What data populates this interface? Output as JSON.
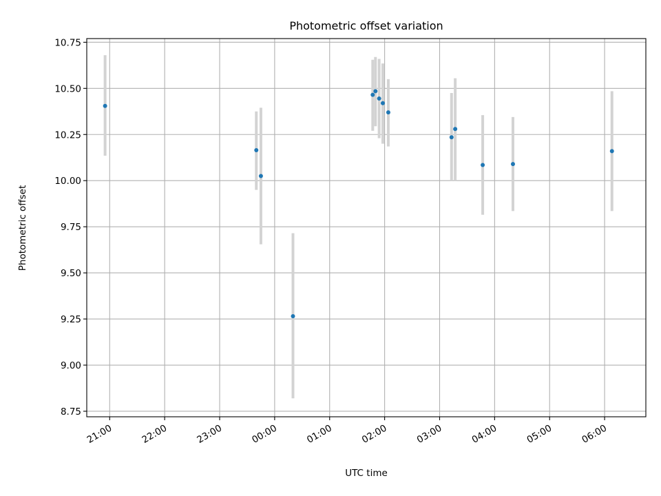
{
  "chart_data": {
    "type": "scatter",
    "title": "Photometric offset variation",
    "xlabel": "UTC time",
    "ylabel": "Photometric offset",
    "x_axis_kind": "datetime",
    "xlim": [
      "2024-01-01T20:35",
      "2024-01-02T06:45"
    ],
    "ylim": [
      8.72,
      10.77
    ],
    "x_ticks": [
      {
        "t": "2024-01-01T21:00",
        "label": "21:00"
      },
      {
        "t": "2024-01-01T22:00",
        "label": "22:00"
      },
      {
        "t": "2024-01-01T23:00",
        "label": "23:00"
      },
      {
        "t": "2024-01-02T00:00",
        "label": "00:00"
      },
      {
        "t": "2024-01-02T01:00",
        "label": "01:00"
      },
      {
        "t": "2024-01-02T02:00",
        "label": "02:00"
      },
      {
        "t": "2024-01-02T03:00",
        "label": "03:00"
      },
      {
        "t": "2024-01-02T04:00",
        "label": "04:00"
      },
      {
        "t": "2024-01-02T05:00",
        "label": "05:00"
      },
      {
        "t": "2024-01-02T06:00",
        "label": "06:00"
      }
    ],
    "y_ticks": [
      8.75,
      9.0,
      9.25,
      9.5,
      9.75,
      10.0,
      10.25,
      10.5,
      10.75
    ],
    "y_tick_labels": [
      "8.75",
      "9.00",
      "9.25",
      "9.50",
      "9.75",
      "10.00",
      "10.25",
      "10.50",
      "10.75"
    ],
    "grid": true,
    "marker_color": "#1f77b4",
    "errorbar_color": "#d3d3d3",
    "points": [
      {
        "t": "2024-01-01T20:55",
        "y": 10.405,
        "lo": 10.135,
        "hi": 10.68
      },
      {
        "t": "2024-01-01T23:40",
        "y": 10.165,
        "lo": 9.95,
        "hi": 10.375
      },
      {
        "t": "2024-01-01T23:45",
        "y": 10.025,
        "lo": 9.655,
        "hi": 10.395
      },
      {
        "t": "2024-01-02T00:20",
        "y": 9.265,
        "lo": 8.82,
        "hi": 9.715
      },
      {
        "t": "2024-01-02T01:47",
        "y": 10.465,
        "lo": 10.27,
        "hi": 10.655
      },
      {
        "t": "2024-01-02T01:50",
        "y": 10.485,
        "lo": 10.295,
        "hi": 10.67
      },
      {
        "t": "2024-01-02T01:54",
        "y": 10.445,
        "lo": 10.23,
        "hi": 10.66
      },
      {
        "t": "2024-01-02T01:58",
        "y": 10.42,
        "lo": 10.2,
        "hi": 10.635
      },
      {
        "t": "2024-01-02T02:04",
        "y": 10.37,
        "lo": 10.185,
        "hi": 10.55
      },
      {
        "t": "2024-01-02T03:13",
        "y": 10.235,
        "lo": 10.0,
        "hi": 10.475
      },
      {
        "t": "2024-01-02T03:17",
        "y": 10.28,
        "lo": 10.0,
        "hi": 10.555
      },
      {
        "t": "2024-01-02T03:47",
        "y": 10.085,
        "lo": 9.815,
        "hi": 10.355
      },
      {
        "t": "2024-01-02T04:20",
        "y": 10.09,
        "lo": 9.835,
        "hi": 10.345
      },
      {
        "t": "2024-01-02T06:08",
        "y": 10.16,
        "lo": 9.835,
        "hi": 10.485
      }
    ]
  }
}
